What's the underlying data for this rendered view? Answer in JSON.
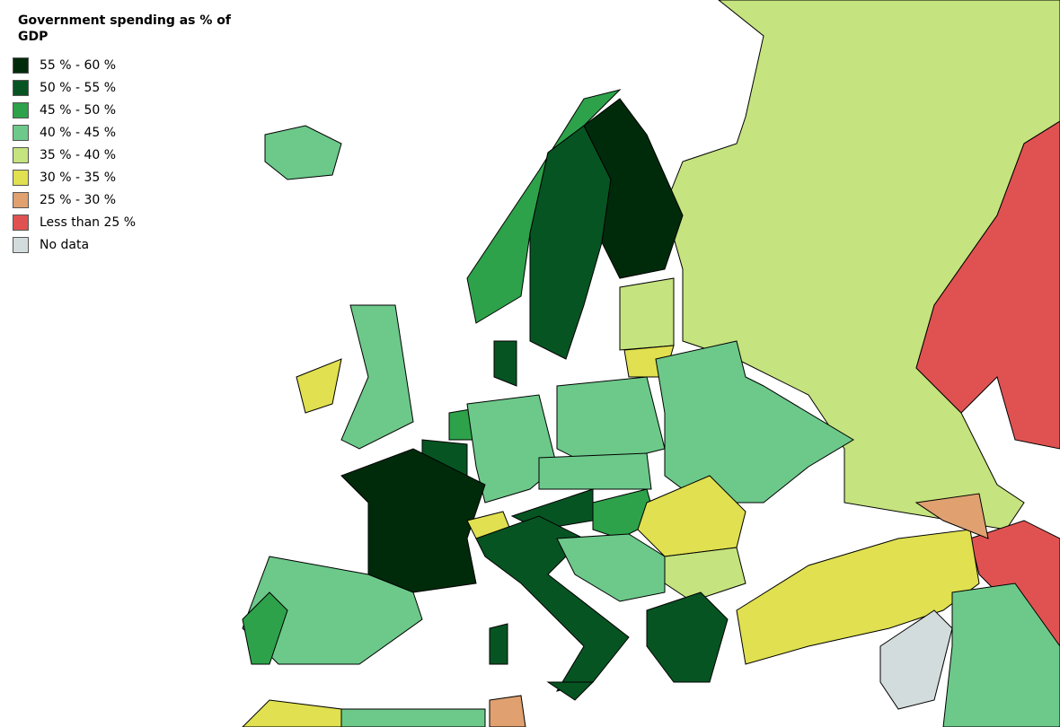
{
  "title": "Government spending as % of GDP",
  "legend": [
    {
      "label": "55 % - 60 %",
      "color": "#002b0b"
    },
    {
      "label": "50 % - 55 %",
      "color": "#075423"
    },
    {
      "label": "45 % - 50 %",
      "color": "#2da24a"
    },
    {
      "label": "40 % - 45 %",
      "color": "#6cc98a"
    },
    {
      "label": "35 % - 40 %",
      "color": "#c5e37e"
    },
    {
      "label": "30 % - 35 %",
      "color": "#e0e050"
    },
    {
      "label": "25 % - 30 %",
      "color": "#e0a070"
    },
    {
      "label": "Less than 25 %",
      "color": "#e05252"
    },
    {
      "label": "No data",
      "color": "#d3dcdc"
    }
  ]
}
